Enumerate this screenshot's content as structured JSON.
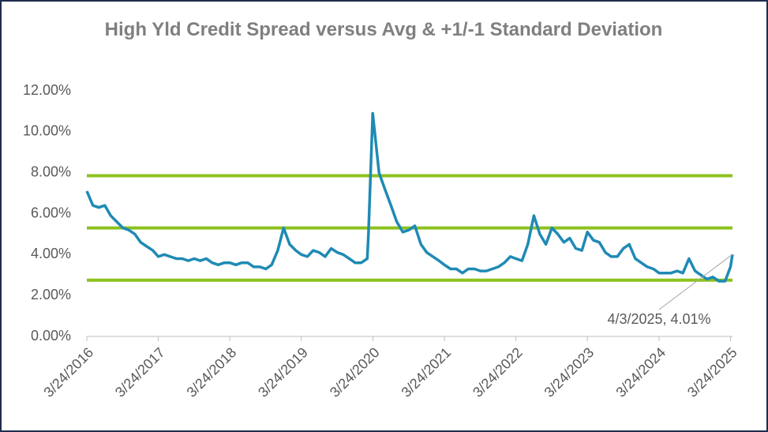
{
  "chart_data": {
    "type": "line",
    "title": "High Yld Credit Spread versus Avg & +1/-1 Standard Deviation",
    "series": [
      {
        "name": "High Yld Credit Spread",
        "color": "#1f8ab4",
        "x": [
          "3/24/2016",
          "4/24/2016",
          "5/24/2016",
          "6/24/2016",
          "7/24/2016",
          "8/24/2016",
          "9/24/2016",
          "10/24/2016",
          "11/24/2016",
          "12/24/2016",
          "1/24/2017",
          "2/24/2017",
          "3/24/2017",
          "4/24/2017",
          "5/24/2017",
          "6/24/2017",
          "7/24/2017",
          "8/24/2017",
          "9/24/2017",
          "10/24/2017",
          "11/24/2017",
          "12/24/2017",
          "1/24/2018",
          "2/24/2018",
          "3/24/2018",
          "4/24/2018",
          "5/24/2018",
          "6/24/2018",
          "7/24/2018",
          "8/24/2018",
          "9/24/2018",
          "10/24/2018",
          "11/24/2018",
          "12/24/2018",
          "1/24/2019",
          "2/24/2019",
          "3/24/2019",
          "4/24/2019",
          "5/24/2019",
          "6/24/2019",
          "7/24/2019",
          "8/24/2019",
          "9/24/2019",
          "10/24/2019",
          "11/24/2019",
          "12/24/2019",
          "1/24/2020",
          "2/24/2020",
          "3/1/2020",
          "3/23/2020",
          "4/24/2020",
          "5/24/2020",
          "6/24/2020",
          "7/24/2020",
          "8/24/2020",
          "9/24/2020",
          "10/24/2020",
          "11/24/2020",
          "12/24/2020",
          "1/24/2021",
          "2/24/2021",
          "3/24/2021",
          "4/24/2021",
          "5/24/2021",
          "6/24/2021",
          "7/24/2021",
          "8/24/2021",
          "9/24/2021",
          "10/24/2021",
          "11/24/2021",
          "12/24/2021",
          "1/24/2022",
          "2/24/2022",
          "3/24/2022",
          "4/24/2022",
          "5/24/2022",
          "6/24/2022",
          "7/24/2022",
          "8/24/2022",
          "9/24/2022",
          "10/24/2022",
          "11/24/2022",
          "12/24/2022",
          "1/24/2023",
          "2/24/2023",
          "3/24/2023",
          "4/24/2023",
          "5/24/2023",
          "6/24/2023",
          "7/24/2023",
          "8/24/2023",
          "9/24/2023",
          "10/24/2023",
          "11/24/2023",
          "12/24/2023",
          "1/24/2024",
          "2/24/2024",
          "3/24/2024",
          "4/24/2024",
          "5/24/2024",
          "6/24/2024",
          "7/24/2024",
          "8/24/2024",
          "9/24/2024",
          "10/24/2024",
          "11/24/2024",
          "12/24/2024",
          "1/24/2025",
          "2/24/2025",
          "3/24/2025",
          "4/3/2025"
        ],
        "values": [
          7.1,
          6.4,
          6.3,
          6.4,
          5.9,
          5.6,
          5.3,
          5.2,
          5.0,
          4.6,
          4.4,
          4.2,
          3.9,
          4.0,
          3.9,
          3.8,
          3.8,
          3.7,
          3.8,
          3.7,
          3.8,
          3.6,
          3.5,
          3.6,
          3.6,
          3.5,
          3.6,
          3.6,
          3.4,
          3.4,
          3.3,
          3.5,
          4.2,
          5.3,
          4.5,
          4.2,
          4.0,
          3.9,
          4.2,
          4.1,
          3.9,
          4.3,
          4.1,
          4.0,
          3.8,
          3.6,
          3.6,
          3.8,
          5.0,
          10.9,
          8.0,
          7.2,
          6.4,
          5.6,
          5.1,
          5.2,
          5.4,
          4.5,
          4.1,
          3.9,
          3.7,
          3.5,
          3.3,
          3.3,
          3.1,
          3.3,
          3.3,
          3.2,
          3.2,
          3.3,
          3.4,
          3.6,
          3.9,
          3.8,
          3.7,
          4.5,
          5.9,
          5.0,
          4.5,
          5.3,
          5.0,
          4.6,
          4.8,
          4.3,
          4.2,
          5.1,
          4.7,
          4.6,
          4.1,
          3.9,
          3.9,
          4.3,
          4.5,
          3.8,
          3.6,
          3.4,
          3.3,
          3.1,
          3.1,
          3.1,
          3.2,
          3.1,
          3.8,
          3.2,
          3.0,
          2.8,
          2.9,
          2.7,
          2.7,
          3.4,
          4.01
        ]
      }
    ],
    "reference_lines": [
      7.85,
      5.3,
      2.75
    ],
    "reference_color": "#8dc21f",
    "annotation": "4/3/2025, 4.01%",
    "xlim": [
      "3/24/2016",
      "4/3/2025"
    ],
    "xticks": [
      "3/24/2016",
      "3/24/2017",
      "3/24/2018",
      "3/24/2019",
      "3/24/2020",
      "3/24/2021",
      "3/24/2022",
      "3/24/2023",
      "3/24/2024",
      "3/24/2025"
    ],
    "ylim": [
      0,
      12
    ],
    "yticks": [
      {
        "value": 0,
        "label": "0.00%"
      },
      {
        "value": 2,
        "label": "2.00%"
      },
      {
        "value": 4,
        "label": "4.00%"
      },
      {
        "value": 6,
        "label": "6.00%"
      },
      {
        "value": 8,
        "label": "8.00%"
      },
      {
        "value": 10,
        "label": "10.00%"
      },
      {
        "value": 12,
        "label": "12.00%"
      }
    ]
  }
}
